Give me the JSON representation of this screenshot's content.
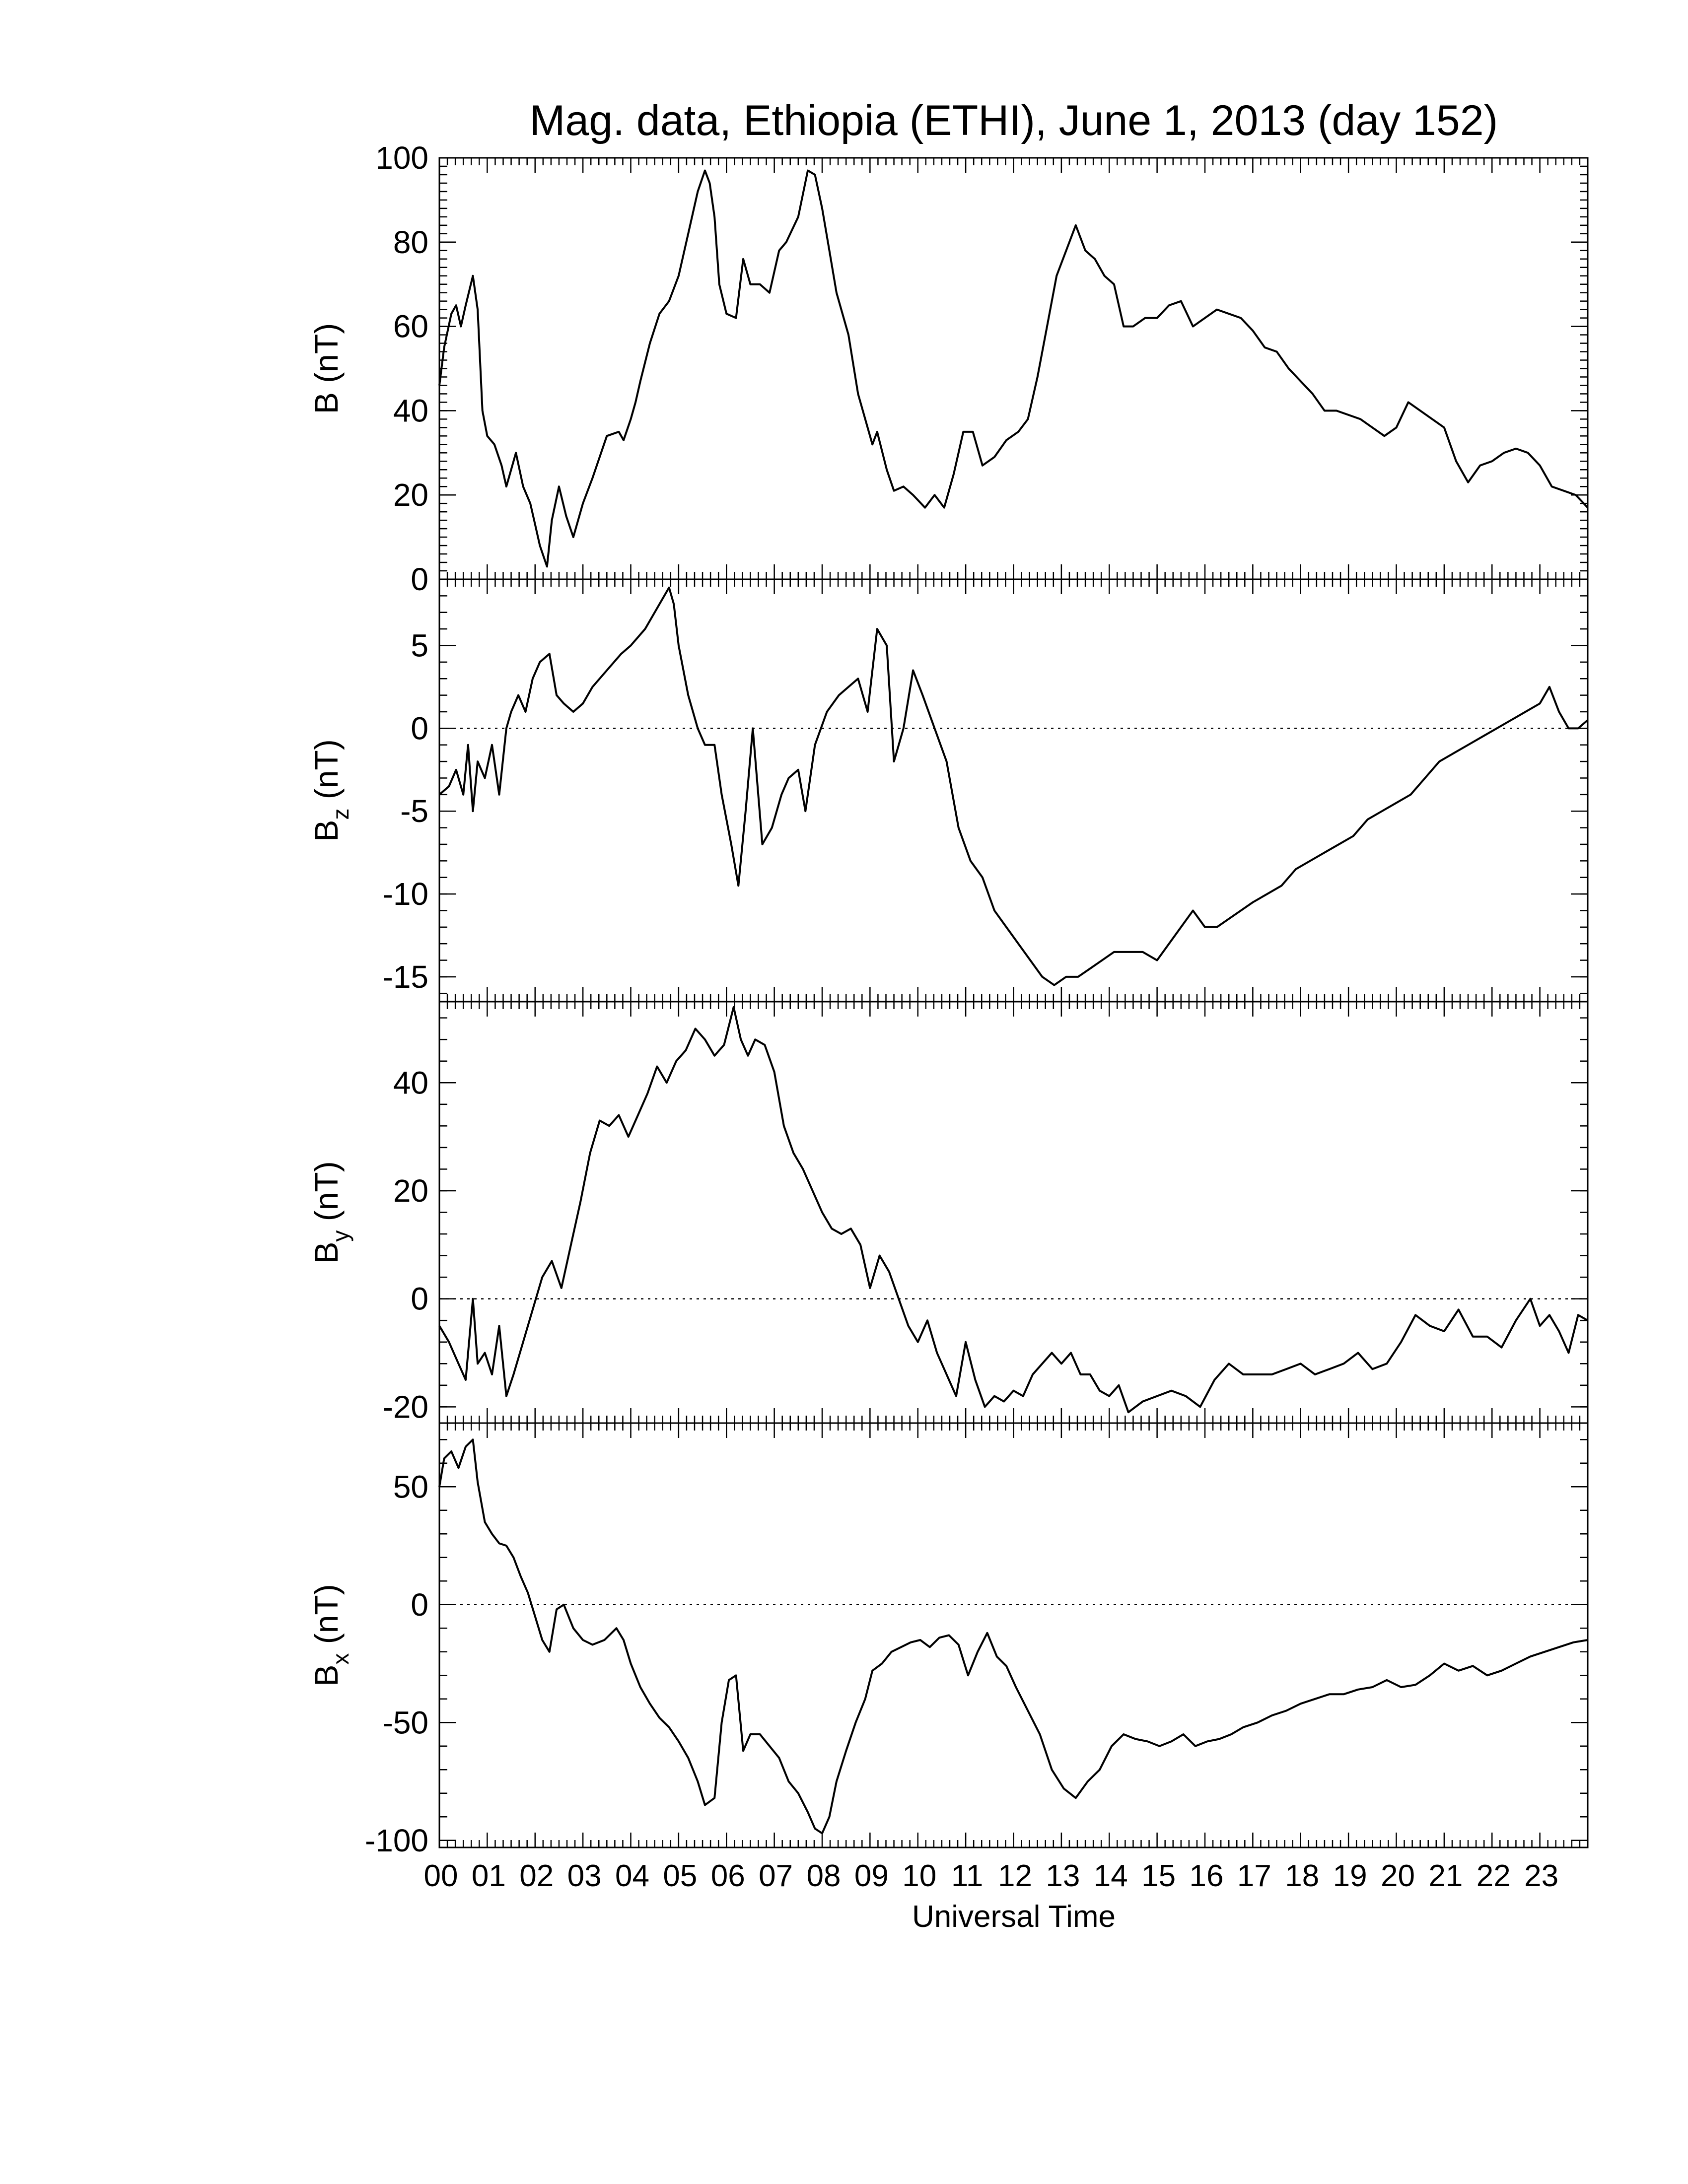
{
  "chart_data": [
    {
      "type": "line",
      "title": "Mag. data, Ethiopia (ETHI), June 1, 2013 (day 152)",
      "ylabel": "B (nT)",
      "ylabel_base": "B",
      "ylabel_sub": "",
      "ylabel_unit": " (nT)",
      "ylim": [
        0,
        100
      ],
      "yticks": [
        0,
        20,
        40,
        60,
        80,
        100
      ],
      "yminor": 2,
      "zero_line": false,
      "series": [
        {
          "x": [
            0,
            0.1,
            0.25,
            0.35,
            0.45,
            0.55,
            0.7,
            0.8,
            0.9,
            1.0,
            1.15,
            1.3,
            1.4,
            1.6,
            1.75,
            1.9,
            2.0,
            2.1,
            2.25,
            2.35,
            2.5,
            2.65,
            2.8,
            3.0,
            3.2,
            3.5,
            3.75,
            3.85,
            4.0,
            4.1,
            4.2,
            4.4,
            4.6,
            4.8,
            5.0,
            5.2,
            5.4,
            5.55,
            5.65,
            5.75,
            5.85,
            6.0,
            6.2,
            6.35,
            6.5,
            6.7,
            6.9,
            7.1,
            7.25,
            7.5,
            7.7,
            7.85,
            8.0,
            8.15,
            8.3,
            8.55,
            8.75,
            8.95,
            9.05,
            9.15,
            9.35,
            9.5,
            9.7,
            9.9,
            10.15,
            10.35,
            10.55,
            10.75,
            10.95,
            11.15,
            11.35,
            11.6,
            11.85,
            12.1,
            12.3,
            12.5,
            12.7,
            12.9,
            13.1,
            13.3,
            13.5,
            13.7,
            13.9,
            14.1,
            14.3,
            14.5,
            14.75,
            15.0,
            15.25,
            15.5,
            15.75,
            16.0,
            16.25,
            16.5,
            16.75,
            17.0,
            17.25,
            17.5,
            17.75,
            18.0,
            18.25,
            18.5,
            18.75,
            19.0,
            19.25,
            19.5,
            19.75,
            20.0,
            20.25,
            20.5,
            20.75,
            21.0,
            21.25,
            21.5,
            21.75,
            22.0,
            22.25,
            22.5,
            22.75,
            23.0,
            23.25,
            23.5,
            23.75,
            24.0
          ],
          "y": [
            46,
            55,
            63,
            65,
            60,
            65,
            72,
            64,
            40,
            34,
            32,
            27,
            22,
            30,
            22,
            18,
            13,
            8,
            3,
            14,
            22,
            15,
            10,
            18,
            24,
            34,
            35,
            33,
            38,
            42,
            47,
            56,
            63,
            66,
            72,
            82,
            92,
            97,
            94,
            86,
            70,
            63,
            62,
            76,
            70,
            70,
            68,
            78,
            80,
            86,
            97,
            96,
            88,
            78,
            68,
            58,
            44,
            36,
            32,
            35,
            26,
            21,
            22,
            20,
            17,
            20,
            17,
            25,
            35,
            35,
            27,
            29,
            33,
            35,
            38,
            48,
            60,
            72,
            78,
            84,
            78,
            76,
            72,
            70,
            60,
            60,
            62,
            62,
            65,
            66,
            60,
            62,
            64,
            63,
            62,
            59,
            55,
            54,
            50,
            47,
            44,
            40,
            40,
            39,
            38,
            36,
            34,
            36,
            42,
            40,
            38,
            36,
            28,
            23,
            27,
            28,
            30,
            31,
            30,
            27,
            22,
            21,
            20,
            17
          ]
        }
      ]
    },
    {
      "type": "line",
      "title": "",
      "ylabel": "Bz (nT)",
      "ylabel_base": "B",
      "ylabel_sub": "z",
      "ylabel_unit": " (nT)",
      "ylim": [
        -16.5,
        9
      ],
      "yticks": [
        -15,
        -10,
        -5,
        0,
        5
      ],
      "yminor": 1,
      "zero_line": true,
      "series": [
        {
          "x": [
            0,
            0.2,
            0.35,
            0.5,
            0.6,
            0.7,
            0.8,
            0.95,
            1.1,
            1.25,
            1.4,
            1.5,
            1.65,
            1.8,
            1.95,
            2.1,
            2.3,
            2.45,
            2.6,
            2.8,
            3.0,
            3.2,
            3.5,
            3.8,
            4.0,
            4.3,
            4.6,
            4.8,
            4.9,
            5.0,
            5.2,
            5.4,
            5.55,
            5.75,
            5.9,
            6.1,
            6.25,
            6.4,
            6.55,
            6.75,
            6.95,
            7.15,
            7.3,
            7.5,
            7.65,
            7.85,
            8.1,
            8.35,
            8.55,
            8.75,
            8.95,
            9.15,
            9.35,
            9.5,
            9.7,
            9.9,
            10.1,
            10.35,
            10.6,
            10.85,
            11.1,
            11.35,
            11.6,
            11.85,
            12.1,
            12.35,
            12.6,
            12.85,
            13.1,
            13.35,
            13.6,
            13.85,
            14.1,
            14.4,
            14.7,
            15.0,
            15.25,
            15.5,
            15.75,
            16.0,
            16.25,
            16.5,
            16.75,
            17.0,
            17.3,
            17.6,
            17.9,
            18.2,
            18.5,
            18.8,
            19.1,
            19.4,
            19.7,
            20.0,
            20.3,
            20.6,
            20.9,
            21.2,
            21.5,
            21.8,
            22.1,
            22.4,
            22.7,
            23.0,
            23.2,
            23.4,
            23.6,
            23.8,
            24.0
          ],
          "y": [
            -4,
            -3.5,
            -2.5,
            -4,
            -1,
            -5,
            -2,
            -3,
            -1,
            -4,
            0,
            1,
            2,
            1,
            3,
            4,
            4.5,
            2,
            1.5,
            1,
            1.5,
            2.5,
            3.5,
            4.5,
            5,
            6,
            7.5,
            8.5,
            7.5,
            5,
            2,
            0,
            -1,
            -1,
            -4,
            -7,
            -9.5,
            -5,
            0,
            -7,
            -6,
            -4,
            -3,
            -2.5,
            -5,
            -1,
            1,
            2,
            2.5,
            3,
            1,
            6,
            5,
            -2,
            0,
            3.5,
            2,
            0,
            -2,
            -6,
            -8,
            -9,
            -11,
            -12,
            -13,
            -14,
            -15,
            -15.5,
            -15,
            -15,
            -14.5,
            -14,
            -13.5,
            -13.5,
            -13.5,
            -14,
            -13,
            -12,
            -11,
            -12,
            -12,
            -11.5,
            -11,
            -10.5,
            -10,
            -9.5,
            -8.5,
            -8,
            -7.5,
            -7,
            -6.5,
            -5.5,
            -5,
            -4.5,
            -4,
            -3,
            -2,
            -1.5,
            -1,
            -0.5,
            0,
            0.5,
            1,
            1.5,
            2.5,
            1,
            0,
            0,
            0.5
          ]
        }
      ]
    },
    {
      "type": "line",
      "title": "",
      "ylabel": "By (nT)",
      "ylabel_base": "B",
      "ylabel_sub": "y",
      "ylabel_unit": " (nT)",
      "ylim": [
        -23,
        55
      ],
      "yticks": [
        -20,
        0,
        20,
        40
      ],
      "yminor": 4,
      "zero_line": true,
      "series": [
        {
          "x": [
            0,
            0.2,
            0.4,
            0.55,
            0.7,
            0.8,
            0.95,
            1.1,
            1.25,
            1.4,
            1.55,
            1.75,
            1.95,
            2.15,
            2.35,
            2.55,
            2.75,
            2.95,
            3.15,
            3.35,
            3.55,
            3.75,
            3.95,
            4.15,
            4.35,
            4.55,
            4.75,
            4.95,
            5.15,
            5.35,
            5.55,
            5.75,
            5.95,
            6.15,
            6.3,
            6.45,
            6.6,
            6.8,
            7.0,
            7.2,
            7.4,
            7.6,
            7.8,
            8.0,
            8.2,
            8.4,
            8.6,
            8.8,
            9.0,
            9.2,
            9.4,
            9.6,
            9.8,
            10.0,
            10.2,
            10.4,
            10.6,
            10.8,
            11.0,
            11.2,
            11.4,
            11.6,
            11.8,
            12.0,
            12.2,
            12.4,
            12.6,
            12.8,
            13.0,
            13.2,
            13.4,
            13.6,
            13.8,
            14.0,
            14.2,
            14.4,
            14.7,
            15.0,
            15.3,
            15.6,
            15.9,
            16.2,
            16.5,
            16.8,
            17.1,
            17.4,
            17.7,
            18.0,
            18.3,
            18.6,
            18.9,
            19.2,
            19.5,
            19.8,
            20.1,
            20.4,
            20.7,
            21.0,
            21.3,
            21.6,
            21.9,
            22.2,
            22.5,
            22.8,
            23.0,
            23.2,
            23.4,
            23.6,
            23.8,
            24.0
          ],
          "y": [
            -5,
            -8,
            -12,
            -15,
            0,
            -12,
            -10,
            -14,
            -5,
            -18,
            -14,
            -8,
            -2,
            4,
            7,
            2,
            10,
            18,
            27,
            33,
            32,
            34,
            30,
            34,
            38,
            43,
            40,
            44,
            46,
            50,
            48,
            45,
            47,
            54,
            48,
            45,
            48,
            47,
            42,
            32,
            27,
            24,
            20,
            16,
            13,
            12,
            13,
            10,
            2,
            8,
            5,
            0,
            -5,
            -8,
            -4,
            -10,
            -14,
            -18,
            -8,
            -15,
            -20,
            -18,
            -19,
            -17,
            -18,
            -14,
            -12,
            -10,
            -12,
            -10,
            -14,
            -14,
            -17,
            -18,
            -16,
            -21,
            -19,
            -18,
            -17,
            -18,
            -20,
            -15,
            -12,
            -14,
            -14,
            -14,
            -13,
            -12,
            -14,
            -13,
            -12,
            -10,
            -13,
            -12,
            -8,
            -3,
            -5,
            -6,
            -2,
            -7,
            -7,
            -9,
            -4,
            0,
            -5,
            -3,
            -6,
            -10,
            -3,
            -4
          ]
        }
      ]
    },
    {
      "type": "line",
      "title": "",
      "ylabel": "Bx (nT)",
      "ylabel_base": "B",
      "ylabel_sub": "x",
      "ylabel_unit": " (nT)",
      "ylim": [
        -103,
        77
      ],
      "yticks": [
        -100,
        -50,
        0,
        50
      ],
      "yminor": 10,
      "zero_line": true,
      "series": [
        {
          "x": [
            0,
            0.1,
            0.25,
            0.4,
            0.55,
            0.7,
            0.8,
            0.95,
            1.1,
            1.25,
            1.4,
            1.55,
            1.7,
            1.85,
            2.0,
            2.15,
            2.3,
            2.45,
            2.6,
            2.8,
            3.0,
            3.2,
            3.45,
            3.7,
            3.85,
            4.0,
            4.2,
            4.4,
            4.6,
            4.8,
            5.0,
            5.2,
            5.4,
            5.55,
            5.75,
            5.9,
            6.05,
            6.2,
            6.35,
            6.5,
            6.7,
            6.9,
            7.1,
            7.3,
            7.5,
            7.7,
            7.85,
            8.0,
            8.15,
            8.3,
            8.5,
            8.7,
            8.9,
            9.05,
            9.25,
            9.45,
            9.65,
            9.85,
            10.05,
            10.25,
            10.45,
            10.65,
            10.85,
            11.05,
            11.25,
            11.45,
            11.65,
            11.85,
            12.05,
            12.3,
            12.55,
            12.8,
            13.05,
            13.3,
            13.55,
            13.8,
            14.05,
            14.3,
            14.55,
            14.8,
            15.05,
            15.3,
            15.55,
            15.8,
            16.05,
            16.3,
            16.55,
            16.8,
            17.1,
            17.4,
            17.7,
            18.0,
            18.3,
            18.6,
            18.9,
            19.2,
            19.5,
            19.8,
            20.1,
            20.4,
            20.7,
            21.0,
            21.3,
            21.6,
            21.9,
            22.2,
            22.5,
            22.8,
            23.1,
            23.4,
            23.7,
            24.0
          ],
          "y": [
            50,
            62,
            65,
            58,
            67,
            70,
            52,
            35,
            30,
            26,
            25,
            20,
            12,
            5,
            -5,
            -15,
            -20,
            -2,
            0,
            -10,
            -15,
            -17,
            -15,
            -10,
            -15,
            -25,
            -35,
            -42,
            -48,
            -52,
            -58,
            -65,
            -75,
            -85,
            -82,
            -50,
            -32,
            -30,
            -62,
            -55,
            -55,
            -60,
            -65,
            -75,
            -80,
            -88,
            -95,
            -97,
            -90,
            -75,
            -62,
            -50,
            -40,
            -28,
            -25,
            -20,
            -18,
            -16,
            -15,
            -18,
            -14,
            -13,
            -17,
            -30,
            -20,
            -12,
            -22,
            -26,
            -35,
            -45,
            -55,
            -70,
            -78,
            -82,
            -75,
            -70,
            -60,
            -55,
            -57,
            -58,
            -60,
            -58,
            -55,
            -60,
            -58,
            -57,
            -55,
            -52,
            -50,
            -47,
            -45,
            -42,
            -40,
            -38,
            -38,
            -36,
            -35,
            -32,
            -35,
            -34,
            -30,
            -25,
            -28,
            -26,
            -30,
            -28,
            -25,
            -22,
            -20,
            -18,
            -16,
            -15
          ]
        }
      ]
    }
  ],
  "xaxis": {
    "label": "Universal Time",
    "range": [
      0,
      24
    ],
    "tick_labels": [
      "00",
      "01",
      "02",
      "03",
      "04",
      "05",
      "06",
      "07",
      "08",
      "09",
      "10",
      "11",
      "12",
      "13",
      "14",
      "15",
      "16",
      "17",
      "18",
      "19",
      "20",
      "21",
      "22",
      "23"
    ],
    "minor_per_hour": 6
  }
}
